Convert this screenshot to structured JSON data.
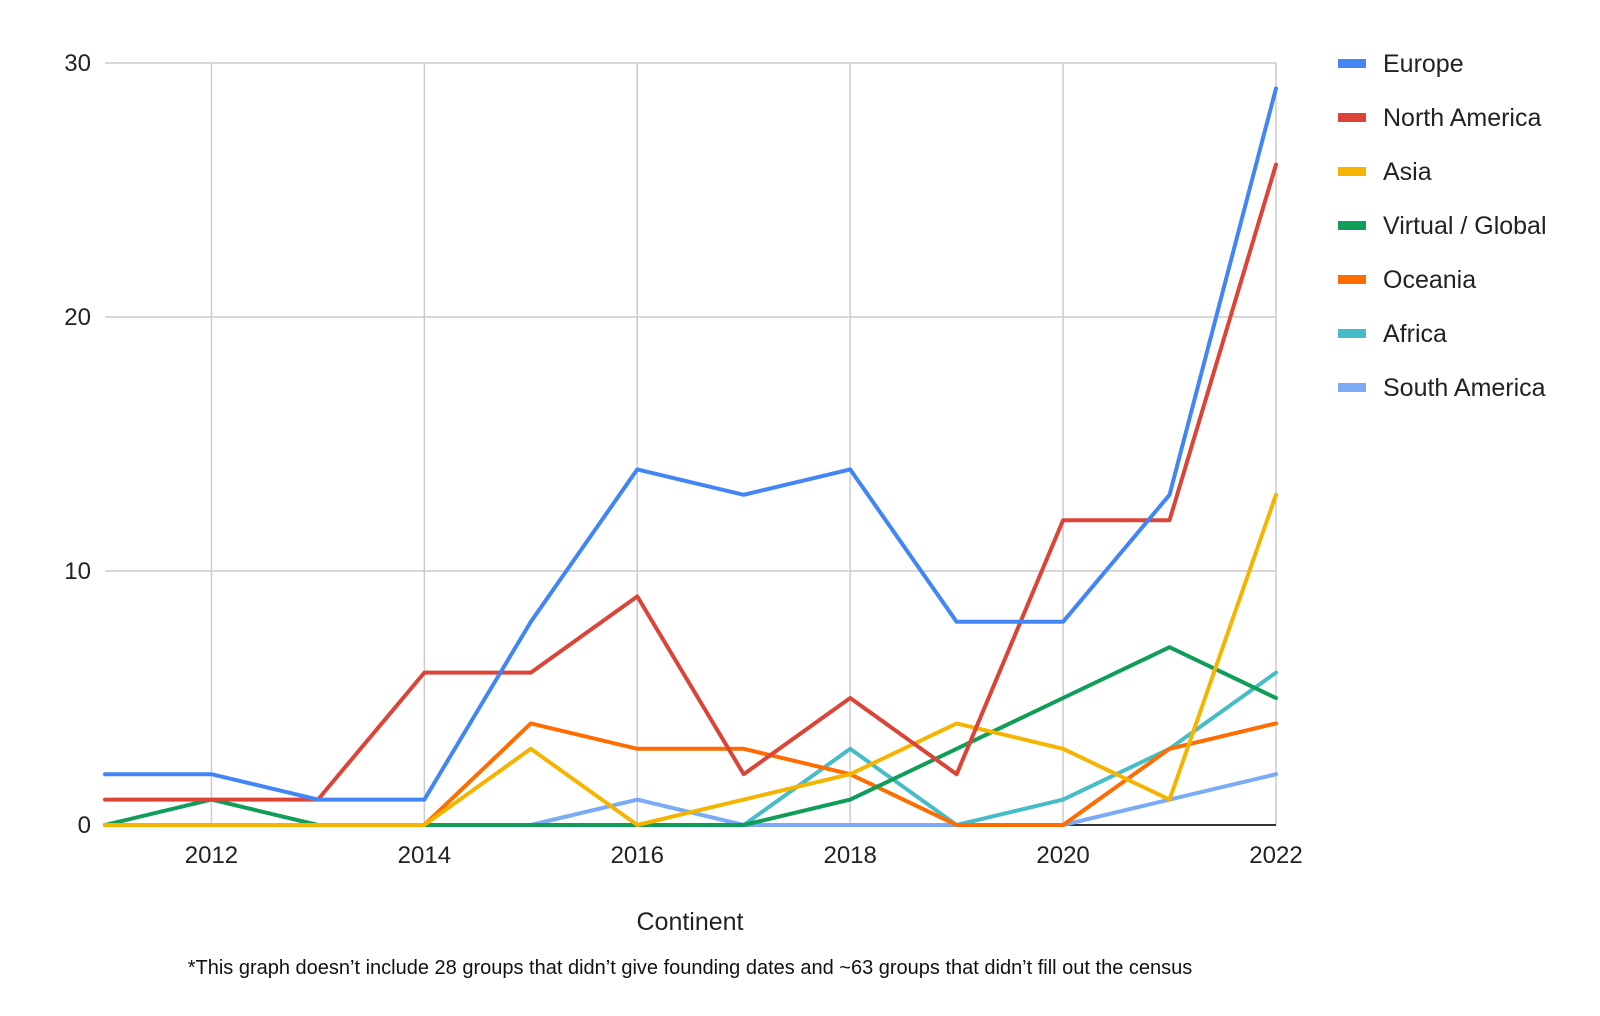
{
  "chart_data": {
    "type": "line",
    "title": "",
    "xlabel": "Continent",
    "ylabel": "",
    "footnote": "*This graph doesn’t include 28 groups that didn’t give founding dates and ~63 groups that didn’t fill out the census",
    "x": [
      2011,
      2012,
      2013,
      2014,
      2015,
      2016,
      2017,
      2018,
      2019,
      2020,
      2021,
      2022
    ],
    "xlim": [
      2011,
      2022
    ],
    "ylim": [
      0,
      30
    ],
    "x_ticks": [
      2012,
      2014,
      2016,
      2018,
      2020,
      2022
    ],
    "y_ticks": [
      0,
      10,
      20,
      30
    ],
    "grid": true,
    "legend_position": "right",
    "series": [
      {
        "name": "Europe",
        "color": "#4285F4",
        "values": [
          2,
          2,
          1,
          1,
          8,
          14,
          13,
          14,
          8,
          8,
          13,
          29
        ]
      },
      {
        "name": "North America",
        "color": "#DB4437",
        "values": [
          1,
          1,
          1,
          6,
          6,
          9,
          2,
          5,
          2,
          12,
          12,
          26
        ]
      },
      {
        "name": "Asia",
        "color": "#F4B400",
        "values": [
          0,
          0,
          0,
          0,
          3,
          0,
          1,
          2,
          4,
          3,
          1,
          13
        ]
      },
      {
        "name": "Virtual / Global",
        "color": "#0F9D58",
        "values": [
          0,
          1,
          0,
          0,
          0,
          0,
          0,
          1,
          3,
          5,
          7,
          5
        ]
      },
      {
        "name": "Oceania",
        "color": "#FF6D01",
        "values": [
          0,
          0,
          0,
          0,
          4,
          3,
          3,
          2,
          0,
          0,
          3,
          4
        ]
      },
      {
        "name": "Africa",
        "color": "#46BDC6",
        "values": [
          0,
          0,
          0,
          0,
          0,
          0,
          0,
          3,
          0,
          1,
          3,
          6
        ]
      },
      {
        "name": "South America",
        "color": "#7BAAF7",
        "values": [
          0,
          0,
          0,
          0,
          0,
          1,
          0,
          0,
          0,
          0,
          1,
          2
        ]
      }
    ]
  }
}
